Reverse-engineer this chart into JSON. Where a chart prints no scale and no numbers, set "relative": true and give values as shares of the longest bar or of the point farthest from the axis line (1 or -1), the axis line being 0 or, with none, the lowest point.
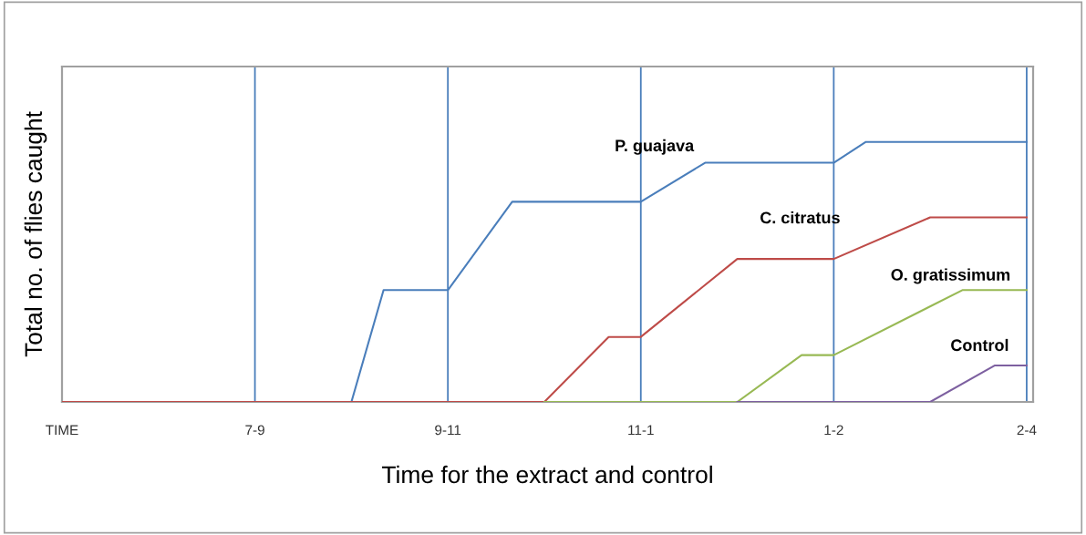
{
  "chart_data": {
    "type": "line",
    "relative": true,
    "xlabel": "Time for the extract and control",
    "ylabel": "Total no. of flies caught",
    "categories": [
      "TIME",
      null,
      null,
      null,
      null,
      null,
      "7-9",
      null,
      null,
      null,
      null,
      null,
      "9-11",
      null,
      null,
      null,
      null,
      null,
      "11-1",
      null,
      null,
      null,
      null,
      null,
      "1-2",
      null,
      null,
      null,
      null,
      null,
      "2-4"
    ],
    "tick_labels": "x",
    "grid": "x",
    "legend": false,
    "marker": "none",
    "line_style": "solid",
    "series": [
      {
        "color": "#4a7ebb",
        "values": [
          0,
          null,
          null,
          null,
          null,
          null,
          null,
          null,
          null,
          0,
          0.43,
          null,
          0.43,
          null,
          0.77,
          null,
          null,
          null,
          0.77,
          null,
          0.92,
          null,
          null,
          null,
          0.92,
          1.0,
          null,
          null,
          null,
          null,
          1.0
        ]
      },
      {
        "color": "#be4b48",
        "values": [
          0,
          null,
          null,
          null,
          null,
          null,
          null,
          null,
          null,
          null,
          null,
          null,
          null,
          null,
          null,
          0,
          null,
          0.25,
          0.25,
          null,
          null,
          0.55,
          null,
          null,
          0.55,
          null,
          null,
          0.71,
          null,
          null,
          0.71
        ]
      },
      {
        "color": "#98b954",
        "values": [
          null,
          null,
          null,
          null,
          null,
          null,
          null,
          null,
          null,
          null,
          null,
          null,
          null,
          null,
          null,
          0,
          null,
          null,
          null,
          null,
          null,
          0,
          null,
          0.18,
          0.18,
          null,
          null,
          null,
          0.43,
          null,
          0.43
        ]
      },
      {
        "color": "#7d60a0",
        "values": [
          null,
          null,
          null,
          null,
          null,
          null,
          null,
          null,
          null,
          null,
          null,
          null,
          null,
          null,
          null,
          null,
          null,
          null,
          null,
          null,
          null,
          0,
          null,
          null,
          null,
          null,
          null,
          0,
          null,
          0.14,
          0.14
        ]
      }
    ],
    "annotations": [
      "P. guajava",
      "C. citratus",
      "O. gratissimum",
      "Control"
    ]
  }
}
